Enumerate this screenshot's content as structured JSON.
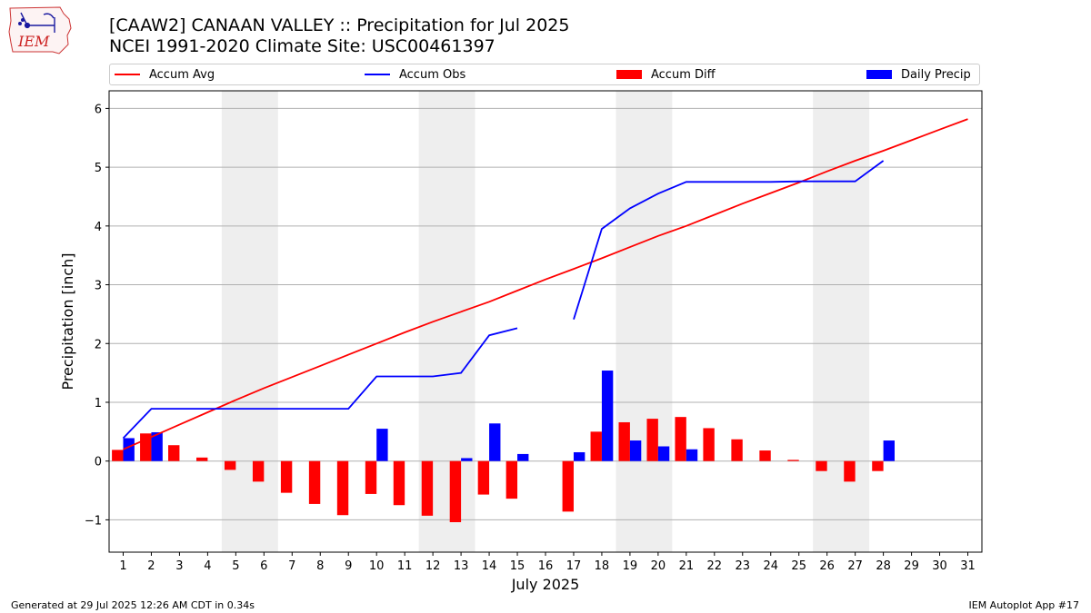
{
  "header": {
    "logo_text": "IEM",
    "title_line1": "[CAAW2] CANAAN VALLEY :: Precipitation for Jul 2025",
    "title_line2": "NCEI 1991-2020 Climate Site: USC00461397"
  },
  "legend": {
    "items": [
      {
        "label": "Accum Avg",
        "kind": "line",
        "color": "#ff0000"
      },
      {
        "label": "Accum Obs",
        "kind": "line",
        "color": "#0000ff"
      },
      {
        "label": "Accum Diff",
        "kind": "bar",
        "color": "#ff0000"
      },
      {
        "label": "Daily Precip",
        "kind": "bar",
        "color": "#0000ff"
      }
    ]
  },
  "footer": {
    "left": "Generated at 29 Jul 2025 12:26 AM CDT in 0.34s",
    "right": "IEM Autoplot App #17"
  },
  "chart_data": {
    "type": "bar",
    "xlabel": "July 2025",
    "ylabel": "Precipitation [inch]",
    "xlim": [
      0.5,
      31.5
    ],
    "ylim": [
      -1.55,
      6.3
    ],
    "x_ticks": [
      1,
      2,
      3,
      4,
      5,
      6,
      7,
      8,
      9,
      10,
      11,
      12,
      13,
      14,
      15,
      16,
      17,
      18,
      19,
      20,
      21,
      22,
      23,
      24,
      25,
      26,
      27,
      28,
      29,
      30,
      31
    ],
    "y_ticks": [
      -1,
      0,
      1,
      2,
      3,
      4,
      5,
      6
    ],
    "y_tick_labels": [
      "−1",
      "0",
      "1",
      "2",
      "3",
      "4",
      "5",
      "6"
    ],
    "grid": "horizontal",
    "weekend_shading": [
      [
        4.5,
        6.5
      ],
      [
        11.5,
        13.5
      ],
      [
        18.5,
        20.5
      ],
      [
        25.5,
        27.5
      ]
    ],
    "series": [
      {
        "name": "Accum Avg",
        "type": "line",
        "color": "#ff0000",
        "x": [
          1,
          2,
          3,
          4,
          5,
          6,
          7,
          8,
          9,
          10,
          11,
          12,
          13,
          14,
          15,
          16,
          17,
          18,
          19,
          20,
          21,
          22,
          23,
          24,
          25,
          26,
          27,
          28,
          29,
          30,
          31
        ],
        "values": [
          0.2,
          0.41,
          0.62,
          0.83,
          1.04,
          1.24,
          1.43,
          1.62,
          1.81,
          2.0,
          2.19,
          2.37,
          2.54,
          2.71,
          2.9,
          3.09,
          3.27,
          3.45,
          3.64,
          3.83,
          4.0,
          4.19,
          4.38,
          4.56,
          4.74,
          4.93,
          5.11,
          5.28,
          5.46,
          5.64,
          5.82
        ]
      },
      {
        "name": "Accum Obs",
        "type": "line",
        "color": "#0000ff",
        "x": [
          1,
          2,
          3,
          4,
          5,
          6,
          7,
          8,
          9,
          10,
          11,
          12,
          13,
          14,
          15,
          16,
          17,
          18,
          19,
          20,
          21,
          22,
          23,
          24,
          25,
          26,
          27,
          28,
          29,
          30,
          31
        ],
        "values": [
          0.39,
          0.89,
          0.89,
          0.89,
          0.89,
          0.89,
          0.89,
          0.89,
          0.89,
          1.44,
          1.44,
          1.44,
          1.5,
          2.14,
          2.26,
          null,
          2.41,
          3.95,
          4.3,
          4.55,
          4.75,
          4.75,
          4.75,
          4.75,
          4.76,
          4.76,
          4.76,
          5.11,
          null,
          null,
          null
        ]
      },
      {
        "name": "Accum Diff",
        "type": "bar",
        "color": "#ff0000",
        "x": [
          1,
          2,
          3,
          4,
          5,
          6,
          7,
          8,
          9,
          10,
          11,
          12,
          13,
          14,
          15,
          16,
          17,
          18,
          19,
          20,
          21,
          22,
          23,
          24,
          25,
          26,
          27,
          28,
          29,
          30,
          31
        ],
        "values": [
          0.19,
          0.47,
          0.27,
          0.06,
          -0.15,
          -0.35,
          -0.54,
          -0.73,
          -0.92,
          -0.56,
          -0.75,
          -0.93,
          -1.04,
          -0.57,
          -0.64,
          null,
          -0.86,
          0.5,
          0.66,
          0.72,
          0.75,
          0.56,
          0.37,
          0.18,
          0.02,
          -0.17,
          -0.35,
          -0.17,
          null,
          null,
          null
        ]
      },
      {
        "name": "Daily Precip",
        "type": "bar",
        "color": "#0000ff",
        "x": [
          1,
          2,
          3,
          4,
          5,
          6,
          7,
          8,
          9,
          10,
          11,
          12,
          13,
          14,
          15,
          16,
          17,
          18,
          19,
          20,
          21,
          22,
          23,
          24,
          25,
          26,
          27,
          28,
          29,
          30,
          31
        ],
        "values": [
          0.39,
          0.49,
          0,
          0,
          0,
          0,
          0,
          0,
          0,
          0.55,
          0,
          0,
          0.05,
          0.64,
          0.12,
          null,
          0.15,
          1.54,
          0.35,
          0.25,
          0.2,
          0,
          0,
          0,
          0,
          0,
          0,
          0.35,
          null,
          null,
          null
        ]
      }
    ]
  }
}
